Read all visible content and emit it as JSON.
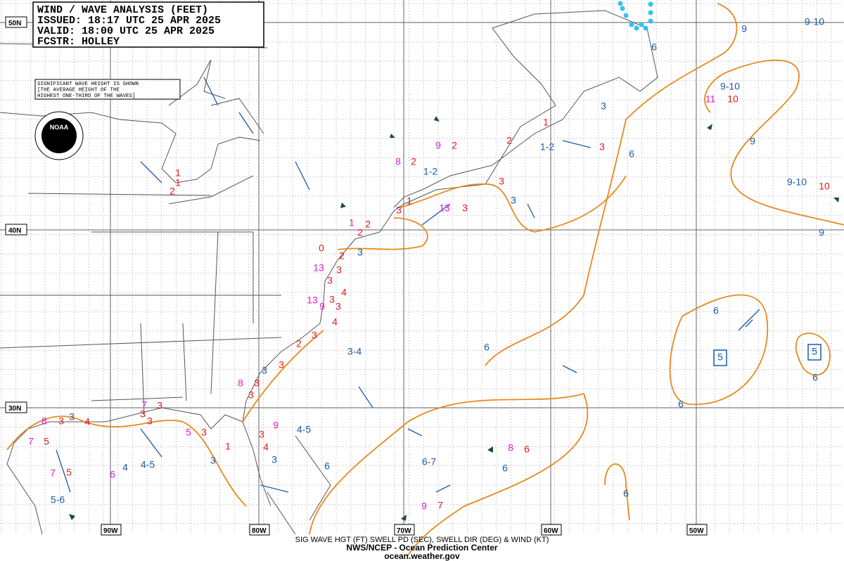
{
  "header": {
    "lines": [
      "WIND / WAVE ANALYSIS (FEET)",
      "ISSUED:  18:17 UTC 25 APR 2025",
      "VALID:   18:00 UTC 25 APR 2025",
      "FCSTR:  HOLLEY"
    ]
  },
  "note": {
    "lines": [
      "SIGNIFICANT WAVE HEIGHT IS SHOWN",
      "[THE AVERAGE HEIGHT OF THE",
      "HIGHEST ONE-THIRD OF THE WAVES]"
    ]
  },
  "logo": {
    "text": "NOAA"
  },
  "lat_labels": [
    "50N",
    "40N",
    "30N"
  ],
  "lon_labels": [
    "90W",
    "80W",
    "70W",
    "60W",
    "50W"
  ],
  "footer": {
    "lines": [
      "SIG WAVE HGT (FT) SWELL PD (SEC), SWELL DIR (DEG) & WIND (KT)",
      "NWS/NCEP - Ocean Prediction Center",
      "ocean.weather.gov"
    ]
  },
  "wave_labels": [
    "9-10",
    "9",
    "6",
    "9-10",
    "3",
    "9",
    "1-2",
    "6",
    "1-2",
    "9-10",
    "3",
    "9",
    "3",
    "6",
    "3-4",
    "6",
    "6",
    "3",
    "3",
    "4-5",
    "6-7",
    "6",
    "4-5",
    "4",
    "3",
    "3",
    "6",
    "6",
    "5-6",
    "6",
    "5",
    "5",
    "10",
    "10",
    "1",
    "2",
    "3",
    "2",
    "2",
    "1",
    "1",
    "2",
    "3",
    "3",
    "1",
    "3",
    "2",
    "2",
    "0",
    "2",
    "3",
    "3",
    "4",
    "3",
    "3",
    "4",
    "3",
    "2",
    "3",
    "3",
    "3",
    "3",
    "3",
    "3",
    "4",
    "3",
    "3",
    "1",
    "4",
    "3",
    "5",
    "5",
    "6",
    "7",
    "11",
    "13",
    "9",
    "8",
    "1",
    "13",
    "13",
    "9",
    "8",
    "7",
    "8",
    "5",
    "9",
    "7",
    "7",
    "6",
    "8",
    "9"
  ]
}
